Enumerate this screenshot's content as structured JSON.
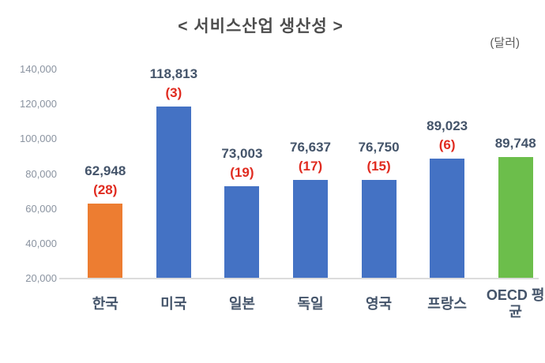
{
  "title": "< 서비스산업 생산성 >",
  "unit_label": "(달러)",
  "chart_data": {
    "type": "bar",
    "title": "서비스산업 생산성",
    "unit": "달러",
    "categories": [
      "한국",
      "미국",
      "일본",
      "독일",
      "영국",
      "프랑스",
      "OECD 평균"
    ],
    "values": [
      62948,
      118813,
      73003,
      76637,
      76750,
      89023,
      89748
    ],
    "value_labels": [
      "62,948",
      "118,813",
      "73,003",
      "76,637",
      "76,750",
      "89,023",
      "89,748"
    ],
    "rank_labels": [
      "(28)",
      "(3)",
      "(19)",
      "(17)",
      "(15)",
      "(6)",
      ""
    ],
    "bar_colors": [
      "#ED7D31",
      "#4472C4",
      "#4472C4",
      "#4472C4",
      "#4472C4",
      "#4472C4",
      "#6CBE4B"
    ],
    "ylim": [
      20000,
      140000
    ],
    "ytick_step": 20000,
    "ytick_labels": [
      "20,000",
      "40,000",
      "60,000",
      "80,000",
      "100,000",
      "120,000",
      "140,000"
    ],
    "grid": false,
    "legend": false,
    "xlabel": "",
    "ylabel": ""
  },
  "colors": {
    "title": "#4d4d4d",
    "unit_label": "#595959",
    "axis_tick": "#8a93a0",
    "value_label": "#44546A",
    "rank_label": "#E02B20",
    "category_label": "#44546A",
    "baseline": "#dcdcdc"
  }
}
